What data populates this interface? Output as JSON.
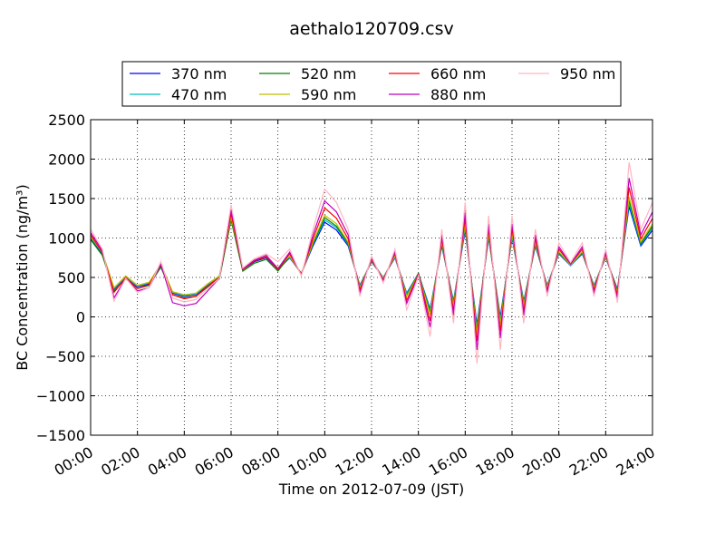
{
  "chart_data": {
    "type": "line",
    "title": "aethalo120709.csv",
    "x_label": "Time on 2012-07-09 (JST)",
    "y_label": "BC Concentration (ng/m³)",
    "x": [
      0,
      0.5,
      1,
      1.5,
      2,
      2.5,
      3,
      3.5,
      4,
      4.5,
      5,
      5.5,
      6,
      6.5,
      7,
      7.5,
      8,
      8.5,
      9,
      9.5,
      10,
      10.5,
      11,
      11.5,
      12,
      12.5,
      13,
      13.5,
      14,
      14.5,
      15,
      15.5,
      16,
      16.5,
      17,
      17.5,
      18,
      18.5,
      19,
      19.5,
      20,
      20.5,
      21,
      21.5,
      22,
      22.5,
      23,
      23.5,
      24
    ],
    "xlim": [
      0,
      24
    ],
    "xticks": [
      {
        "value": 0,
        "label": "00:00"
      },
      {
        "value": 2,
        "label": "02:00"
      },
      {
        "value": 4,
        "label": "04:00"
      },
      {
        "value": 6,
        "label": "06:00"
      },
      {
        "value": 8,
        "label": "08:00"
      },
      {
        "value": 10,
        "label": "10:00"
      },
      {
        "value": 12,
        "label": "12:00"
      },
      {
        "value": 14,
        "label": "14:00"
      },
      {
        "value": 16,
        "label": "16:00"
      },
      {
        "value": 18,
        "label": "18:00"
      },
      {
        "value": 20,
        "label": "20:00"
      },
      {
        "value": 22,
        "label": "22:00"
      },
      {
        "value": 24,
        "label": "24:00"
      }
    ],
    "ylim": [
      -1500,
      2500
    ],
    "yticks": [
      {
        "value": -1500,
        "label": "−1500"
      },
      {
        "value": -1000,
        "label": "−1000"
      },
      {
        "value": -500,
        "label": "−500"
      },
      0,
      500,
      1000,
      1500,
      2000,
      2500
    ],
    "grid": true,
    "legend": "top",
    "series": [
      {
        "name": "370 nm",
        "color": "#0000ff",
        "values": [
          1000,
          800,
          350,
          500,
          380,
          420,
          650,
          300,
          260,
          280,
          400,
          500,
          1250,
          600,
          700,
          750,
          600,
          750,
          550,
          900,
          1200,
          1100,
          900,
          400,
          700,
          500,
          750,
          300,
          550,
          100,
          900,
          200,
          1100,
          -100,
          1000,
          0,
          1000,
          200,
          900,
          400,
          800,
          650,
          800,
          400,
          750,
          350,
          1400,
          900,
          1100
        ]
      },
      {
        "name": "470 nm",
        "color": "#00bfbf",
        "values": [
          1010,
          810,
          360,
          510,
          390,
          430,
          660,
          310,
          270,
          290,
          410,
          510,
          1260,
          610,
          710,
          760,
          610,
          760,
          550,
          920,
          1230,
          1130,
          920,
          390,
          710,
          500,
          760,
          290,
          550,
          80,
          920,
          180,
          1130,
          -140,
          1020,
          -30,
          1020,
          180,
          920,
          390,
          810,
          650,
          810,
          390,
          760,
          340,
          1440,
          920,
          1130
        ]
      },
      {
        "name": "520 nm",
        "color": "#008000",
        "values": [
          980,
          780,
          330,
          480,
          360,
          400,
          630,
          280,
          240,
          260,
          380,
          480,
          1230,
          580,
          680,
          730,
          580,
          770,
          550,
          930,
          1260,
          1150,
          930,
          380,
          710,
          490,
          770,
          270,
          550,
          50,
          930,
          160,
          1150,
          -170,
          1040,
          -60,
          1040,
          160,
          930,
          380,
          820,
          660,
          820,
          380,
          770,
          330,
          1480,
          930,
          1150
        ]
      },
      {
        "name": "590 nm",
        "color": "#bfbf00",
        "values": [
          1020,
          820,
          370,
          520,
          400,
          440,
          670,
          320,
          280,
          300,
          420,
          520,
          1270,
          620,
          720,
          770,
          620,
          770,
          540,
          950,
          1290,
          1180,
          950,
          370,
          720,
          490,
          770,
          260,
          540,
          30,
          950,
          140,
          1180,
          -210,
          1060,
          -90,
          1060,
          140,
          950,
          370,
          830,
          660,
          830,
          370,
          770,
          310,
          1520,
          950,
          1180
        ]
      },
      {
        "name": "660 nm",
        "color": "#ff0000",
        "values": [
          1040,
          820,
          310,
          500,
          360,
          410,
          660,
          280,
          230,
          260,
          390,
          500,
          1310,
          600,
          710,
          760,
          600,
          800,
          540,
          990,
          1380,
          1250,
          990,
          340,
          730,
          470,
          800,
          210,
          540,
          -50,
          990,
          80,
          1250,
          -310,
          1120,
          -180,
          1120,
          80,
          990,
          340,
          860,
          670,
          860,
          340,
          800,
          280,
          1640,
          990,
          1250
        ]
      },
      {
        "name": "880 nm",
        "color": "#bf00bf",
        "values": [
          1070,
          840,
          240,
          490,
          330,
          370,
          670,
          180,
          140,
          170,
          330,
          490,
          1360,
          610,
          720,
          780,
          610,
          820,
          530,
          1040,
          1470,
          1330,
          1040,
          310,
          750,
          460,
          820,
          170,
          530,
          -130,
          1040,
          20,
          1330,
          -420,
          1180,
          -270,
          1180,
          20,
          1040,
          310,
          890,
          670,
          890,
          310,
          820,
          240,
          1760,
          1040,
          1330
        ]
      },
      {
        "name": "950 nm",
        "color": "#ffb6c1",
        "values": [
          1110,
          860,
          200,
          490,
          310,
          370,
          700,
          240,
          190,
          220,
          360,
          490,
          1420,
          620,
          740,
          800,
          700,
          860,
          520,
          1110,
          1620,
          1450,
          1110,
          260,
          770,
          430,
          860,
          90,
          520,
          -250,
          1110,
          -80,
          1450,
          -590,
          1280,
          -420,
          1280,
          -80,
          1110,
          260,
          940,
          690,
          940,
          260,
          860,
          180,
          1960,
          1110,
          1450
        ]
      }
    ]
  }
}
